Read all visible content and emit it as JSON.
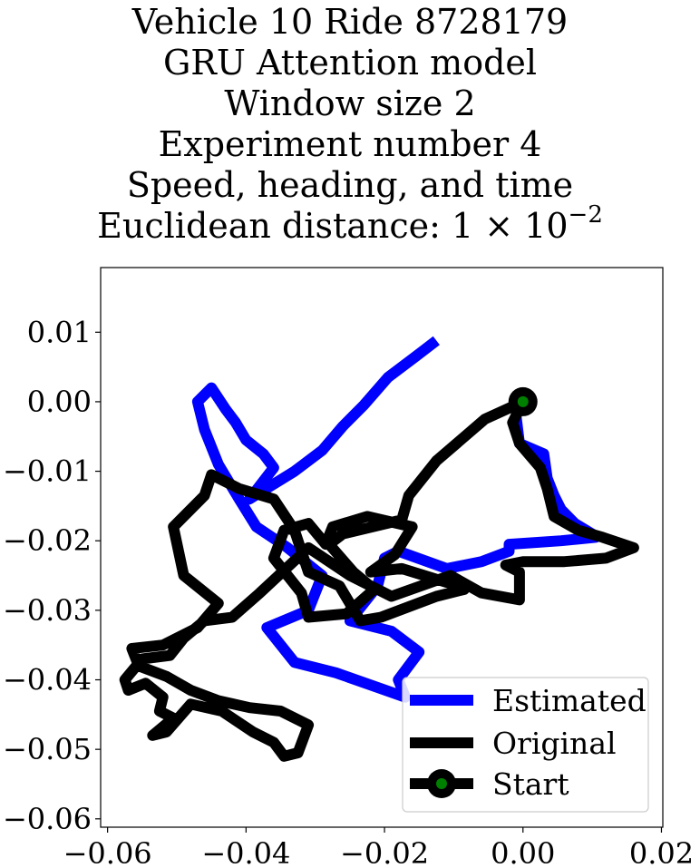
{
  "title_lines": [
    "Vehicle 10 Ride 8728179",
    "GRU Attention model",
    "Window size 2",
    "Experiment number 4",
    "Speed, heading, and time"
  ],
  "title_last_prefix": "Euclidean distance: 1 × 10",
  "title_last_exponent": "−2",
  "chart_data": {
    "type": "line",
    "title": "Vehicle 10 Ride 8728179 GRU Attention model Window size 2 Experiment number 4 Speed, heading, and time Euclidean distance: 1 × 10^−2",
    "xlabel": "",
    "ylabel": "",
    "xlim": [
      -0.061,
      0.0202
    ],
    "ylim": [
      -0.0612,
      0.0193
    ],
    "xticks": [
      -0.06,
      -0.04,
      -0.02,
      0.0,
      0.02
    ],
    "xtick_labels": [
      "−0.06",
      "−0.04",
      "−0.02",
      "0.00",
      "0.02"
    ],
    "yticks": [
      0.01,
      0.0,
      -0.01,
      -0.02,
      -0.03,
      -0.04,
      -0.05,
      -0.06
    ],
    "ytick_labels": [
      "0.01",
      "0.00",
      "−0.01",
      "−0.02",
      "−0.03",
      "−0.04",
      "−0.05",
      "−0.06"
    ],
    "grid": false,
    "legend_position": "bottom-right",
    "colors": {
      "estimated": "#0000ff",
      "original": "#000000",
      "start": "#008000"
    },
    "series": [
      {
        "name": "Estimated",
        "x": [
          0.0,
          -0.001,
          -0.0005,
          0.003,
          0.0035,
          0.0045,
          0.0055,
          0.0075,
          0.01,
          0.0105,
          0.0055,
          -0.002,
          -0.002,
          -0.006,
          -0.011,
          -0.018,
          -0.02,
          -0.021,
          -0.025,
          -0.019,
          -0.015,
          -0.018,
          -0.017,
          -0.027,
          -0.033,
          -0.037,
          -0.031,
          -0.029,
          -0.034,
          -0.0385,
          -0.041,
          -0.044,
          -0.046,
          -0.047,
          -0.045,
          -0.043,
          -0.0415,
          -0.04,
          -0.0375,
          -0.036,
          -0.0395,
          -0.033,
          -0.029,
          -0.026,
          -0.023,
          -0.0195,
          -0.0155,
          -0.0125
        ],
        "y": [
          0.0,
          -0.002,
          -0.006,
          -0.0075,
          -0.011,
          -0.0135,
          -0.0155,
          -0.0175,
          -0.019,
          -0.0195,
          -0.02,
          -0.0205,
          -0.0215,
          -0.023,
          -0.024,
          -0.0215,
          -0.0225,
          -0.0265,
          -0.0315,
          -0.033,
          -0.036,
          -0.04,
          -0.0425,
          -0.039,
          -0.0375,
          -0.0325,
          -0.03,
          -0.025,
          -0.021,
          -0.018,
          -0.014,
          -0.009,
          -0.004,
          0.0,
          0.002,
          -0.001,
          -0.003,
          -0.0055,
          -0.0075,
          -0.0095,
          -0.014,
          -0.01,
          -0.007,
          -0.0035,
          -0.0005,
          0.0035,
          0.0065,
          0.0088
        ]
      },
      {
        "name": "Original",
        "x": [
          0.0,
          -0.0015,
          -0.0005,
          0.0025,
          0.0035,
          0.0045,
          0.008,
          0.0115,
          0.016,
          0.012,
          0.006,
          0.0,
          -0.0025,
          -0.0005,
          -0.0005,
          -0.006,
          -0.0105,
          -0.019,
          -0.025,
          -0.031,
          -0.038,
          -0.042,
          -0.046,
          -0.049,
          -0.051,
          -0.055,
          -0.0575,
          -0.057,
          -0.0545,
          -0.052,
          -0.0525,
          -0.0505,
          -0.0535,
          -0.0515,
          -0.048,
          -0.0435,
          -0.039,
          -0.036,
          -0.0345,
          -0.0325,
          -0.031,
          -0.035,
          -0.0395,
          -0.044,
          -0.048,
          -0.0515,
          -0.0555,
          -0.0565,
          -0.052,
          -0.047,
          -0.044,
          -0.049,
          -0.0505,
          -0.046,
          -0.045,
          -0.041,
          -0.036,
          -0.033,
          -0.031,
          -0.0265,
          -0.0235,
          -0.0205,
          -0.0125,
          -0.0085,
          -0.011,
          -0.0175,
          -0.022,
          -0.0185,
          -0.016,
          -0.0225,
          -0.0275,
          -0.0285,
          -0.031,
          -0.0345,
          -0.036,
          -0.032,
          -0.031,
          -0.0255,
          -0.0215,
          -0.0245,
          -0.028,
          -0.026,
          -0.0175,
          -0.0165,
          -0.0125,
          -0.0055,
          0.0
        ],
        "y": [
          0.0,
          -0.003,
          -0.006,
          -0.0095,
          -0.0125,
          -0.0165,
          -0.0185,
          -0.0195,
          -0.021,
          -0.0225,
          -0.023,
          -0.023,
          -0.0235,
          -0.0245,
          -0.0285,
          -0.0275,
          -0.025,
          -0.028,
          -0.025,
          -0.021,
          -0.0275,
          -0.031,
          -0.0315,
          -0.034,
          -0.0365,
          -0.037,
          -0.04,
          -0.0415,
          -0.0405,
          -0.0425,
          -0.0445,
          -0.0455,
          -0.048,
          -0.0475,
          -0.0435,
          -0.0445,
          -0.0475,
          -0.049,
          -0.051,
          -0.0505,
          -0.0465,
          -0.0445,
          -0.044,
          -0.043,
          -0.0415,
          -0.0395,
          -0.038,
          -0.0355,
          -0.035,
          -0.0325,
          -0.029,
          -0.025,
          -0.018,
          -0.0135,
          -0.0105,
          -0.0125,
          -0.014,
          -0.0185,
          -0.0245,
          -0.0265,
          -0.0315,
          -0.031,
          -0.028,
          -0.027,
          -0.026,
          -0.024,
          -0.0245,
          -0.022,
          -0.018,
          -0.0165,
          -0.018,
          -0.0205,
          -0.0175,
          -0.0185,
          -0.0225,
          -0.0275,
          -0.031,
          -0.0305,
          -0.027,
          -0.0245,
          -0.0205,
          -0.019,
          -0.017,
          -0.0135,
          -0.0085,
          -0.0025,
          0.0
        ]
      },
      {
        "name": "Start",
        "x": [
          0.0
        ],
        "y": [
          0.0
        ]
      }
    ]
  }
}
